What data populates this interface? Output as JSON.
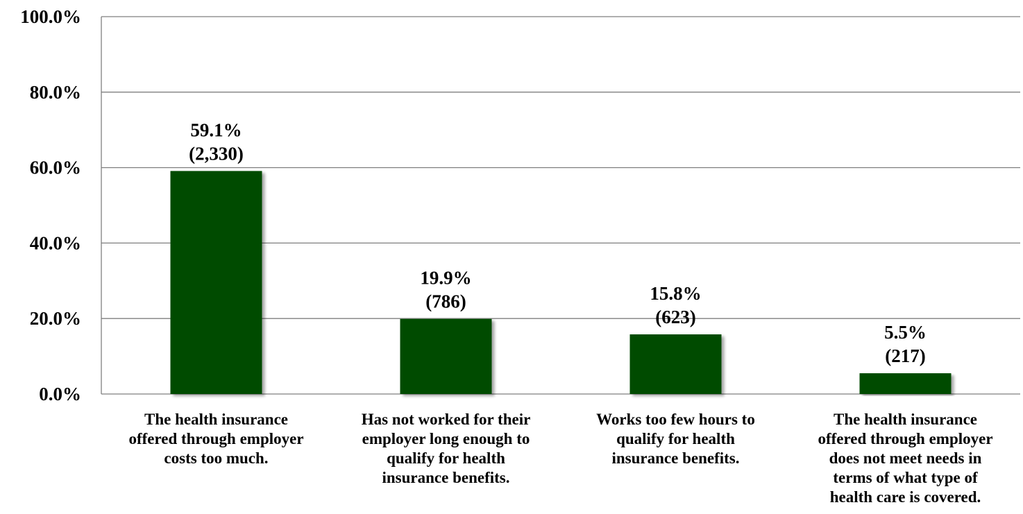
{
  "chart_data": {
    "type": "bar",
    "categories": [
      [
        "The health insurance",
        "offered through employer",
        "costs too much."
      ],
      [
        "Has not worked for their",
        "employer long enough to",
        "qualify for health",
        "insurance benefits."
      ],
      [
        "Works too few hours to",
        "qualify for health",
        "insurance benefits."
      ],
      [
        "The health insurance",
        "offered through employer",
        "does not meet needs in",
        "terms of what type of",
        "health care is covered."
      ]
    ],
    "values": [
      59.1,
      19.9,
      15.8,
      5.5
    ],
    "data_labels": [
      [
        "59.1%",
        "(2,330)"
      ],
      [
        "19.9%",
        "(786)"
      ],
      [
        "15.8%",
        "(623)"
      ],
      [
        "5.5%",
        "(217)"
      ]
    ],
    "yticks": [
      "0.0%",
      "20.0%",
      "40.0%",
      "60.0%",
      "80.0%",
      "100.0%"
    ],
    "ylim": [
      0,
      100
    ],
    "grid": true,
    "legend": "none",
    "bar_color": "#044c04",
    "gridline_color": "#7f7f7f",
    "title": "",
    "xlabel": "",
    "ylabel": ""
  }
}
